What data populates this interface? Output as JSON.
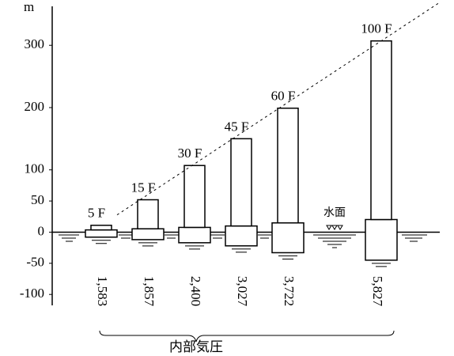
{
  "chart_data": {
    "type": "bar",
    "y_label": "m",
    "categories": [
      "5 F",
      "15 F",
      "30 F",
      "45 F",
      "60 F",
      "100 F"
    ],
    "values": [
      11,
      52,
      107,
      150,
      199,
      307
    ],
    "depths": [
      -8,
      -12,
      -17,
      -22,
      -33,
      -45
    ],
    "pressure_labels": [
      "1,583",
      "1,857",
      "2,400",
      "3,027",
      "3,722",
      "5,827"
    ],
    "water_label": "水面",
    "pressure_title": "内部気圧",
    "color": "#000000",
    "ylim": [
      -115,
      360
    ],
    "yticks": [
      -100,
      -50,
      0,
      50,
      100,
      200,
      300
    ]
  }
}
